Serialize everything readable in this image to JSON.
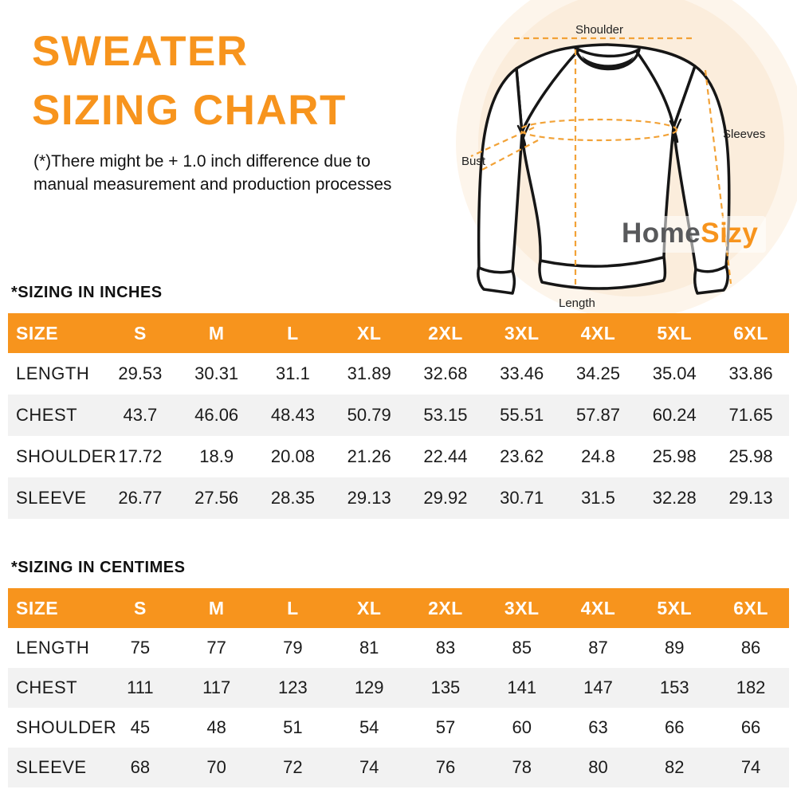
{
  "header": {
    "title_line1": "SWEATER",
    "title_line2": "SIZING CHART",
    "disclaimer_line1": "(*)There might be + 1.0 inch difference due to",
    "disclaimer_line2": "manual measurement and production processes"
  },
  "brand": {
    "logo_part1": "Home",
    "logo_part2": "Sizy"
  },
  "diagram_labels": {
    "shoulder": "Shoulder",
    "bust": "Bust",
    "sleeves": "Sleeves",
    "length": "Length"
  },
  "colors": {
    "accent_orange": "#F7941D",
    "dash_orange": "#F2A237",
    "row_alt_gray": "#F2F2F2",
    "text_dark": "#1B1B1B",
    "logo_gray": "#58595B",
    "circle_inner": "#FBEDDC",
    "circle_outer": "#FDF5EB"
  },
  "tables": {
    "inches": {
      "title": "*SIZING IN INCHES",
      "columns": [
        "SIZE",
        "S",
        "M",
        "L",
        "XL",
        "2XL",
        "3XL",
        "4XL",
        "5XL",
        "6XL"
      ],
      "rows": [
        {
          "label": "LENGTH",
          "values": [
            "29.53",
            "30.31",
            "31.1",
            "31.89",
            "32.68",
            "33.46",
            "34.25",
            "35.04",
            "33.86"
          ]
        },
        {
          "label": "CHEST",
          "values": [
            "43.7",
            "46.06",
            "48.43",
            "50.79",
            "53.15",
            "55.51",
            "57.87",
            "60.24",
            "71.65"
          ]
        },
        {
          "label": "SHOULDER",
          "values": [
            "17.72",
            "18.9",
            "20.08",
            "21.26",
            "22.44",
            "23.62",
            "24.8",
            "25.98",
            "25.98"
          ]
        },
        {
          "label": "SLEEVE",
          "values": [
            "26.77",
            "27.56",
            "28.35",
            "29.13",
            "29.92",
            "30.71",
            "31.5",
            "32.28",
            "29.13"
          ]
        }
      ]
    },
    "centimeters": {
      "title": "*SIZING IN CENTIMES",
      "columns": [
        "SIZE",
        "S",
        "M",
        "L",
        "XL",
        "2XL",
        "3XL",
        "4XL",
        "5XL",
        "6XL"
      ],
      "rows": [
        {
          "label": "LENGTH",
          "values": [
            "75",
            "77",
            "79",
            "81",
            "83",
            "85",
            "87",
            "89",
            "86"
          ]
        },
        {
          "label": "CHEST",
          "values": [
            "111",
            "117",
            "123",
            "129",
            "135",
            "141",
            "147",
            "153",
            "182"
          ]
        },
        {
          "label": "SHOULDER",
          "values": [
            "45",
            "48",
            "51",
            "54",
            "57",
            "60",
            "63",
            "66",
            "66"
          ]
        },
        {
          "label": "SLEEVE",
          "values": [
            "68",
            "70",
            "72",
            "74",
            "76",
            "78",
            "80",
            "82",
            "74"
          ]
        }
      ]
    }
  },
  "chart_data": [
    {
      "type": "table",
      "title": "*SIZING IN INCHES",
      "columns": [
        "SIZE",
        "S",
        "M",
        "L",
        "XL",
        "2XL",
        "3XL",
        "4XL",
        "5XL",
        "6XL"
      ],
      "rows": [
        [
          "LENGTH",
          29.53,
          30.31,
          31.1,
          31.89,
          32.68,
          33.46,
          34.25,
          35.04,
          33.86
        ],
        [
          "CHEST",
          43.7,
          46.06,
          48.43,
          50.79,
          53.15,
          55.51,
          57.87,
          60.24,
          71.65
        ],
        [
          "SHOULDER",
          17.72,
          18.9,
          20.08,
          21.26,
          22.44,
          23.62,
          24.8,
          25.98,
          25.98
        ],
        [
          "SLEEVE",
          26.77,
          27.56,
          28.35,
          29.13,
          29.92,
          30.71,
          31.5,
          32.28,
          29.13
        ]
      ]
    },
    {
      "type": "table",
      "title": "*SIZING IN CENTIMES",
      "columns": [
        "SIZE",
        "S",
        "M",
        "L",
        "XL",
        "2XL",
        "3XL",
        "4XL",
        "5XL",
        "6XL"
      ],
      "rows": [
        [
          "LENGTH",
          75,
          77,
          79,
          81,
          83,
          85,
          87,
          89,
          86
        ],
        [
          "CHEST",
          111,
          117,
          123,
          129,
          135,
          141,
          147,
          153,
          182
        ],
        [
          "SHOULDER",
          45,
          48,
          51,
          54,
          57,
          60,
          63,
          66,
          66
        ],
        [
          "SLEEVE",
          68,
          70,
          72,
          74,
          76,
          78,
          80,
          82,
          74
        ]
      ]
    }
  ]
}
